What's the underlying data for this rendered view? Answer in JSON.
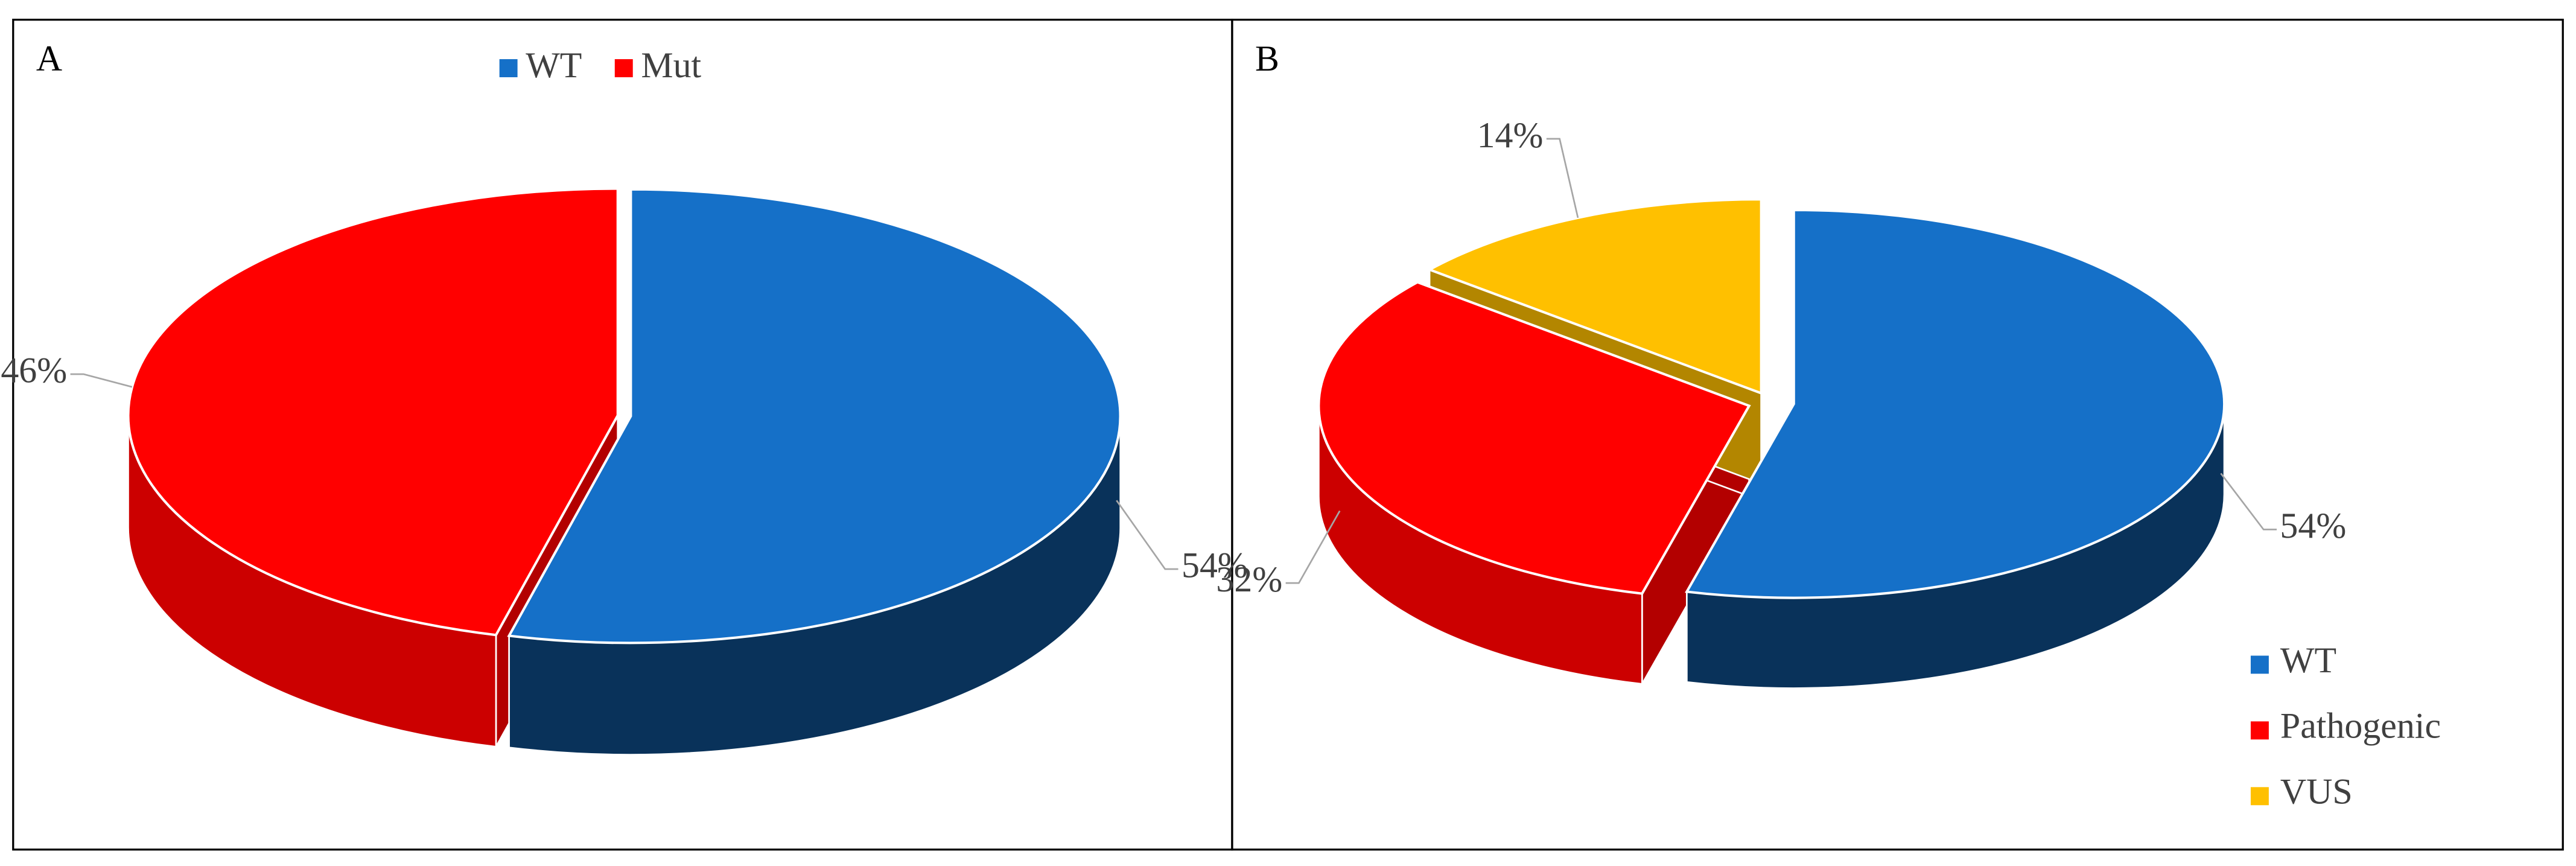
{
  "chart_data": [
    {
      "type": "pie",
      "panel": "A",
      "categories": [
        "WT",
        "Mut"
      ],
      "values": [
        54,
        46
      ],
      "value_labels": [
        "54%",
        "46%"
      ],
      "colors": [
        "#1570c8",
        "#ff0000"
      ],
      "legend": "top"
    },
    {
      "type": "pie",
      "panel": "B",
      "categories": [
        "WT",
        "Pathogenic",
        "VUS"
      ],
      "values": [
        54,
        32,
        14
      ],
      "value_labels": [
        "54%",
        "32%",
        "14%"
      ],
      "colors": [
        "#1570c8",
        "#ff0000",
        "#ffc000"
      ],
      "legend": "bottom-right"
    }
  ]
}
